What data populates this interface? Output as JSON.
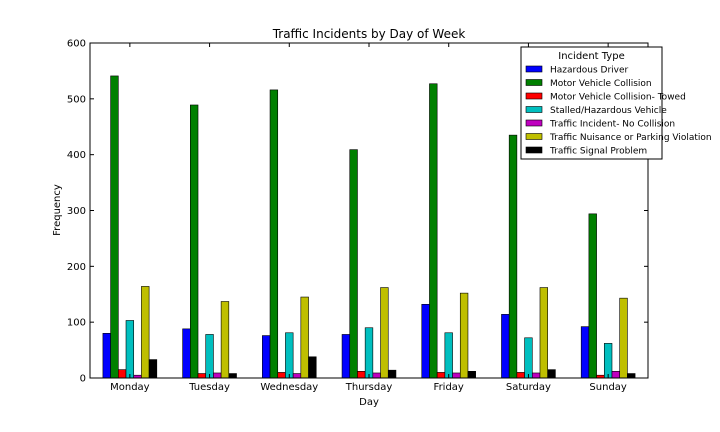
{
  "chart_data": {
    "type": "bar",
    "title": "Traffic Incidents by Day of Week",
    "xlabel": "Day",
    "ylabel": "Frequency",
    "ylim": [
      0,
      600
    ],
    "yticks": [
      0,
      100,
      200,
      300,
      400,
      500,
      600
    ],
    "categories": [
      "Monday",
      "Tuesday",
      "Wednesday",
      "Thursday",
      "Friday",
      "Saturday",
      "Sunday"
    ],
    "legend_title": "Incident Type",
    "legend_position": "top-right",
    "grid": false,
    "series": [
      {
        "name": "Hazardous Driver",
        "color": "#0000ff",
        "values": [
          80,
          88,
          76,
          78,
          132,
          114,
          92
        ]
      },
      {
        "name": "Motor Vehicle Collision",
        "color": "#008000",
        "values": [
          541,
          489,
          516,
          409,
          527,
          435,
          294
        ]
      },
      {
        "name": "Motor Vehicle Collision- Towed",
        "color": "#ff0000",
        "values": [
          15,
          8,
          10,
          12,
          10,
          10,
          5
        ]
      },
      {
        "name": "Stalled/Hazardous Vehicle",
        "color": "#00bfbf",
        "values": [
          103,
          78,
          81,
          90,
          81,
          72,
          62
        ]
      },
      {
        "name": "Traffic Incident- No Collision",
        "color": "#bf00bf",
        "values": [
          5,
          9,
          8,
          9,
          9,
          9,
          12
        ]
      },
      {
        "name": "Traffic Nuisance or Parking Violation",
        "color": "#bfbf00",
        "values": [
          164,
          137,
          145,
          162,
          152,
          162,
          143
        ]
      },
      {
        "name": "Traffic Signal Problem",
        "color": "#000000",
        "values": [
          33,
          8,
          38,
          14,
          12,
          15,
          8
        ]
      }
    ]
  }
}
